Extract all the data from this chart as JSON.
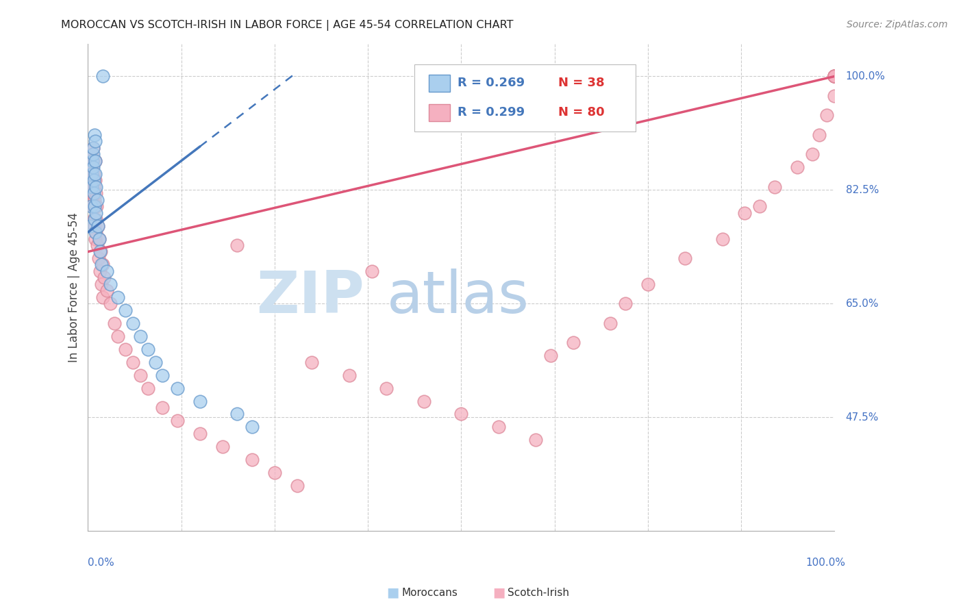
{
  "title": "MOROCCAN VS SCOTCH-IRISH IN LABOR FORCE | AGE 45-54 CORRELATION CHART",
  "source": "Source: ZipAtlas.com",
  "ylabel": "In Labor Force | Age 45-54",
  "ytick_vals": [
    100.0,
    82.5,
    65.0,
    47.5
  ],
  "ytick_labels": [
    "100.0%",
    "82.5%",
    "65.0%",
    "47.5%"
  ],
  "xtick_left": "0.0%",
  "xtick_right": "100.0%",
  "blue_fill": "#aacfee",
  "blue_edge": "#6699cc",
  "blue_line": "#4477bb",
  "pink_fill": "#f5b0c0",
  "pink_edge": "#dd8899",
  "pink_line": "#dd5577",
  "grid_color": "#cccccc",
  "title_color": "#222222",
  "source_color": "#888888",
  "axis_label_color": "#4472c4",
  "legend_r_color": "#4477bb",
  "legend_n_color": "#dd3333",
  "watermark_zip_color": "#cde0f0",
  "watermark_atlas_color": "#b8d0e8",
  "moroccan_x": [
    0.3,
    0.4,
    0.5,
    0.55,
    0.6,
    0.65,
    0.7,
    0.7,
    0.75,
    0.8,
    0.85,
    0.9,
    0.9,
    0.95,
    1.0,
    1.0,
    1.0,
    1.1,
    1.1,
    1.2,
    1.3,
    1.5,
    1.6,
    1.8,
    2.0,
    2.5,
    3.0,
    4.0,
    5.0,
    6.0,
    7.0,
    8.0,
    9.0,
    10.0,
    12.0,
    15.0,
    20.0,
    22.0
  ],
  "moroccan_y": [
    77,
    80,
    83,
    85,
    87,
    88,
    89,
    86,
    84,
    82,
    80,
    91,
    78,
    76,
    90,
    87,
    85,
    83,
    79,
    81,
    77,
    75,
    73,
    71,
    100,
    70,
    68,
    66,
    64,
    62,
    60,
    58,
    56,
    54,
    52,
    50,
    48,
    46
  ],
  "scotchirish_x": [
    0.3,
    0.4,
    0.45,
    0.5,
    0.5,
    0.55,
    0.6,
    0.6,
    0.65,
    0.7,
    0.7,
    0.75,
    0.8,
    0.8,
    0.85,
    0.9,
    0.9,
    0.95,
    1.0,
    1.0,
    1.0,
    1.05,
    1.1,
    1.1,
    1.15,
    1.2,
    1.3,
    1.4,
    1.5,
    1.6,
    1.7,
    1.8,
    2.0,
    2.0,
    2.2,
    2.5,
    3.0,
    3.5,
    4.0,
    5.0,
    6.0,
    7.0,
    8.0,
    10.0,
    12.0,
    15.0,
    18.0,
    20.0,
    22.0,
    25.0,
    28.0,
    30.0,
    35.0,
    38.0,
    40.0,
    45.0,
    50.0,
    55.0,
    60.0,
    62.0,
    65.0,
    70.0,
    72.0,
    75.0,
    80.0,
    85.0,
    88.0,
    90.0,
    92.0,
    95.0,
    97.0,
    98.0,
    99.0,
    100.0,
    100.0,
    100.0,
    100.0,
    100.0,
    100.0,
    100.0
  ],
  "scotchirish_y": [
    83,
    85,
    87,
    82,
    88,
    84,
    86,
    80,
    89,
    82,
    87,
    78,
    85,
    80,
    83,
    77,
    81,
    75,
    84,
    80,
    87,
    78,
    82,
    76,
    80,
    74,
    77,
    72,
    75,
    70,
    73,
    68,
    71,
    66,
    69,
    67,
    65,
    62,
    60,
    58,
    56,
    54,
    52,
    49,
    47,
    45,
    43,
    74,
    41,
    39,
    37,
    56,
    54,
    70,
    52,
    50,
    48,
    46,
    44,
    57,
    59,
    62,
    65,
    68,
    72,
    75,
    79,
    80,
    83,
    86,
    88,
    91,
    94,
    97,
    100,
    100,
    100,
    100,
    100,
    100
  ]
}
